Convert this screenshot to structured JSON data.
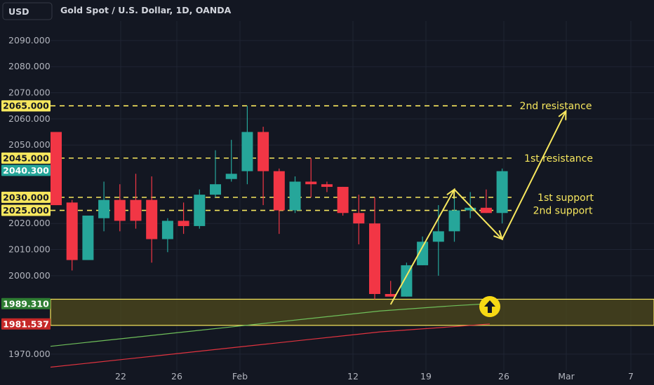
{
  "header": {
    "currency_button": "USD",
    "symbol_title": "Gold Spot / U.S. Dollar, 1D, OANDA"
  },
  "colors": {
    "background": "#131722",
    "grid": "#1f2433",
    "up": "#26a69a",
    "down": "#f23645",
    "annotation": "#f7e75e",
    "zone_fill": "#4f4a1c",
    "ma_fast": "#6fbf5a",
    "ma_slow": "#e0333f",
    "axis_text": "#b2b5be",
    "badge_price": "#26a69a",
    "badge_green": "#2e7d32",
    "badge_red": "#c62828"
  },
  "chart_data": {
    "type": "candlestick",
    "title": "Gold Spot / U.S. Dollar, 1D, OANDA",
    "ylim": [
      1963,
      2098
    ],
    "y_ticks": [
      "1970.000",
      "2000.000",
      "2010.000",
      "2020.000",
      "2050.000",
      "2060.000",
      "2070.000",
      "2080.000",
      "2090.000"
    ],
    "x_ticks": [
      "22",
      "26",
      "Feb",
      "12",
      "19",
      "26",
      "Mar",
      "7"
    ],
    "candles": [
      {
        "o": 2055,
        "h": 2055,
        "l": 2027,
        "c": 2027
      },
      {
        "o": 2028,
        "h": 2029,
        "l": 2002,
        "c": 2006
      },
      {
        "o": 2006,
        "h": 2023,
        "l": 2006,
        "c": 2023
      },
      {
        "o": 2022,
        "h": 2036,
        "l": 2017,
        "c": 2029
      },
      {
        "o": 2029,
        "h": 2035,
        "l": 2017,
        "c": 2021
      },
      {
        "o": 2029,
        "h": 2039,
        "l": 2018,
        "c": 2021
      },
      {
        "o": 2029,
        "h": 2038,
        "l": 2005,
        "c": 2014
      },
      {
        "o": 2014,
        "h": 2022,
        "l": 2009,
        "c": 2021
      },
      {
        "o": 2021,
        "h": 2028,
        "l": 2016,
        "c": 2019
      },
      {
        "o": 2019,
        "h": 2033,
        "l": 2018,
        "c": 2031
      },
      {
        "o": 2031,
        "h": 2048,
        "l": 2030,
        "c": 2035
      },
      {
        "o": 2037,
        "h": 2052,
        "l": 2036,
        "c": 2039
      },
      {
        "o": 2040,
        "h": 2065,
        "l": 2035,
        "c": 2055
      },
      {
        "o": 2055,
        "h": 2057,
        "l": 2027,
        "c": 2040
      },
      {
        "o": 2040,
        "h": 2041,
        "l": 2016,
        "c": 2025
      },
      {
        "o": 2025,
        "h": 2038,
        "l": 2024,
        "c": 2036
      },
      {
        "o": 2036,
        "h": 2045,
        "l": 2030,
        "c": 2035
      },
      {
        "o": 2035,
        "h": 2036,
        "l": 2032,
        "c": 2034
      },
      {
        "o": 2034,
        "h": 2034,
        "l": 2023,
        "c": 2024
      },
      {
        "o": 2024,
        "h": 2031,
        "l": 2012,
        "c": 2020
      },
      {
        "o": 2020,
        "h": 2030,
        "l": 1991,
        "c": 1993
      },
      {
        "o": 1993,
        "h": 1998,
        "l": 1992,
        "c": 1992
      },
      {
        "o": 1992,
        "h": 2005,
        "l": 1992,
        "c": 2004
      },
      {
        "o": 2004,
        "h": 2015,
        "l": 2004,
        "c": 2013
      },
      {
        "o": 2013,
        "h": 2027,
        "l": 2000,
        "c": 2017
      },
      {
        "o": 2017,
        "h": 2030,
        "l": 2013,
        "c": 2025
      },
      {
        "o": 2025,
        "h": 2032,
        "l": 2022,
        "c": 2026
      },
      {
        "o": 2026,
        "h": 2033,
        "l": 2024,
        "c": 2024
      },
      {
        "o": 2024,
        "h": 2041,
        "l": 2020,
        "c": 2040
      }
    ],
    "horizontal_levels": [
      {
        "price": 2065,
        "label": "2065.000",
        "annotation": "2nd resistance"
      },
      {
        "price": 2045,
        "label": "2045.000",
        "annotation": "1st resistance"
      },
      {
        "price": 2030,
        "label": "2030.000",
        "annotation": "1st support"
      },
      {
        "price": 2025,
        "label": "2025.000",
        "annotation": "2nd support"
      }
    ],
    "current_price": {
      "value": 2040.3,
      "label": "2040.300"
    },
    "support_zone": {
      "top": 1991,
      "bottom": 1981
    },
    "moving_averages": [
      {
        "label": "1989.310",
        "values": [
          1973,
          1974.5,
          1976,
          1977.5,
          1979,
          1980.5,
          1982,
          1983.5,
          1985,
          1986.5,
          1987.5,
          1988.5,
          1989.31
        ]
      },
      {
        "label": "1981.537",
        "values": [
          1965,
          1966.5,
          1968,
          1969.5,
          1971,
          1972.5,
          1974,
          1975.5,
          1977,
          1978.5,
          1979.5,
          1980.5,
          1981.537
        ]
      }
    ],
    "zigzag_path": [
      {
        "i": 21,
        "p": 1989
      },
      {
        "i": 25,
        "p": 2033
      },
      {
        "i": 28,
        "p": 2014
      },
      {
        "i": 32,
        "p": 2063
      }
    ]
  }
}
